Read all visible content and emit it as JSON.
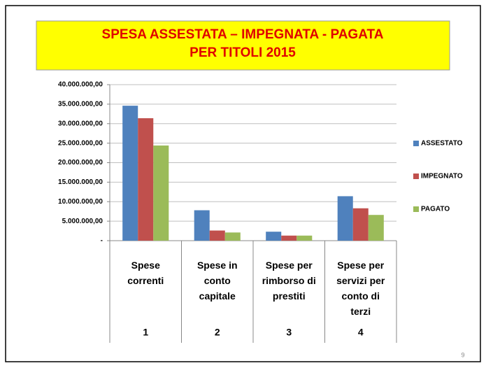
{
  "chart_data": {
    "type": "bar",
    "title": [
      "SPESA  ASSESTATA – IMPEGNATA - PAGATA",
      "PER TITOLI 2015"
    ],
    "categories": [
      "Spese correnti",
      "Spese in conto capitale",
      "Spese per rimborso di prestiti",
      "Spese per servizi per conto di terzi"
    ],
    "category_codes": [
      "1",
      "2",
      "3",
      "4"
    ],
    "series": [
      {
        "name": "ASSESTATO",
        "color": "#4f81bd",
        "values": [
          34600000,
          7800000,
          2300000,
          11400000
        ]
      },
      {
        "name": "IMPEGNATO",
        "color": "#c0504d",
        "values": [
          31400000,
          2600000,
          1300000,
          8300000
        ]
      },
      {
        "name": "PAGATO",
        "color": "#9bbb59",
        "values": [
          24400000,
          2100000,
          1300000,
          6600000
        ]
      }
    ],
    "ylim": [
      0,
      40000000
    ],
    "yticks": [
      {
        "value": 0,
        "label": "-"
      },
      {
        "value": 5000000,
        "label": "5.000.000,00"
      },
      {
        "value": 10000000,
        "label": "10.000.000,00"
      },
      {
        "value": 15000000,
        "label": "15.000.000,00"
      },
      {
        "value": 20000000,
        "label": "20.000.000,00"
      },
      {
        "value": 25000000,
        "label": "25.000.000,00"
      },
      {
        "value": 30000000,
        "label": "30.000.000,00"
      },
      {
        "value": 35000000,
        "label": "35.000.000,00"
      },
      {
        "value": 40000000,
        "label": "40.000.000,00"
      }
    ],
    "grid": true,
    "legend": "right",
    "page_number": "9"
  }
}
